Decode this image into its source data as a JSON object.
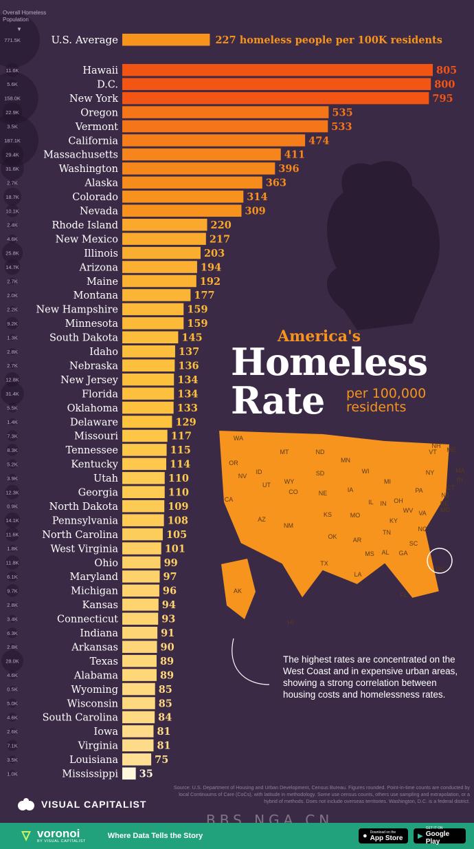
{
  "header": {
    "pop_label": "Overall Homeless Population",
    "arrow": "▼"
  },
  "chart_data": {
    "type": "bar",
    "orientation": "horizontal",
    "average": {
      "label": "U.S. Average",
      "value": 227,
      "population": "771.5K",
      "value_text": "227 homeless people per 100K residents"
    },
    "categories": [
      "Hawaii",
      "D.C.",
      "New York",
      "Oregon",
      "Vermont",
      "California",
      "Massachusetts",
      "Washington",
      "Alaska",
      "Colorado",
      "Nevada",
      "Rhode Island",
      "New Mexico",
      "Illinois",
      "Arizona",
      "Maine",
      "Montana",
      "New Hampshire",
      "Minnesota",
      "South Dakota",
      "Idaho",
      "Nebraska",
      "New Jersey",
      "Florida",
      "Oklahoma",
      "Delaware",
      "Missouri",
      "Tennessee",
      "Kentucky",
      "Utah",
      "Georgia",
      "North Dakota",
      "Pennsylvania",
      "North Carolina",
      "West Virginia",
      "Ohio",
      "Maryland",
      "Michigan",
      "Kansas",
      "Connecticut",
      "Indiana",
      "Arkansas",
      "Texas",
      "Alabama",
      "Wyoming",
      "Wisconsin",
      "South Carolina",
      "Iowa",
      "Virginia",
      "Louisiana",
      "Mississippi"
    ],
    "values": [
      805,
      800,
      795,
      535,
      533,
      474,
      411,
      396,
      363,
      314,
      309,
      220,
      217,
      203,
      194,
      192,
      177,
      159,
      159,
      145,
      137,
      136,
      134,
      134,
      133,
      129,
      117,
      115,
      114,
      110,
      110,
      109,
      108,
      105,
      101,
      99,
      97,
      96,
      94,
      93,
      91,
      90,
      89,
      89,
      85,
      85,
      84,
      81,
      81,
      75,
      35
    ],
    "population": [
      "11.6K",
      "5.6K",
      "158.0K",
      "22.9K",
      "3.5K",
      "187.1K",
      "29.4K",
      "31.6K",
      "2.7K",
      "18.7K",
      "10.1K",
      "2.4K",
      "4.6K",
      "25.8K",
      "14.7K",
      "2.7K",
      "2.0K",
      "2.2K",
      "9.2K",
      "1.3K",
      "2.8K",
      "2.7K",
      "12.8K",
      "31.4K",
      "5.5K",
      "1.4K",
      "7.3K",
      "8.3K",
      "5.2K",
      "3.9K",
      "12.3K",
      "0.9K",
      "14.1K",
      "11.6K",
      "1.8K",
      "11.8K",
      "6.1K",
      "9.7K",
      "2.8K",
      "3.4K",
      "6.3K",
      "2.8K",
      "28.0K",
      "4.6K",
      "0.5K",
      "5.0K",
      "4.6K",
      "2.6K",
      "7.1K",
      "3.5K",
      "1.0K"
    ],
    "xlim": [
      0,
      820
    ],
    "title": "America's Homeless Rate",
    "units": "per 100,000 residents"
  },
  "title": {
    "sub": "America's",
    "main1": "Homeless",
    "main2": "Rate",
    "per": "per 100,000 residents"
  },
  "map_labels": [
    "WA",
    "OR",
    "CA",
    "NV",
    "ID",
    "MT",
    "WY",
    "UT",
    "AZ",
    "CO",
    "NM",
    "ND",
    "SD",
    "NE",
    "KS",
    "OK",
    "TX",
    "MN",
    "IA",
    "MO",
    "AR",
    "LA",
    "WI",
    "IL",
    "MS",
    "MI",
    "IN",
    "KY",
    "TN",
    "AL",
    "OH",
    "GA",
    "FL",
    "SC",
    "NC",
    "WV",
    "VA",
    "PA",
    "NY",
    "VT",
    "NH",
    "ME",
    "MA",
    "RI",
    "CT",
    "NJ",
    "DE",
    "MD",
    "AK",
    "HI",
    "DC"
  ],
  "note": "The highest rates are concentrated on the West Coast and in expensive urban areas, showing a strong correlation between housing costs and homelessness rates.",
  "source": "Source: U.S. Department of Housing and Urban Development, Census Bureau. Figures rounded. Point-in-time counts are conducted by local Continuums of Care (CoCs), with latitude in methodology. Some use census counts, others use sampling and extrapolation, or a hybrid of methods. Does not include overseas territories. Washington, D.C. is a federal district.",
  "brand": "VISUAL CAPITALIST",
  "footer": {
    "logo": "voronoi",
    "by": "BY VISUAL CAPITALIST",
    "tagline": "Where Data Tells the Story",
    "appstore_small": "Download on the",
    "appstore_big": "App Store",
    "gplay_small": "GET IT ON",
    "gplay_big": "Google Play"
  },
  "watermark": "BBS.NGA.CN",
  "colors": {
    "background": "#3b2a45",
    "accent": "#f7941d",
    "footer": "#22a27c"
  }
}
